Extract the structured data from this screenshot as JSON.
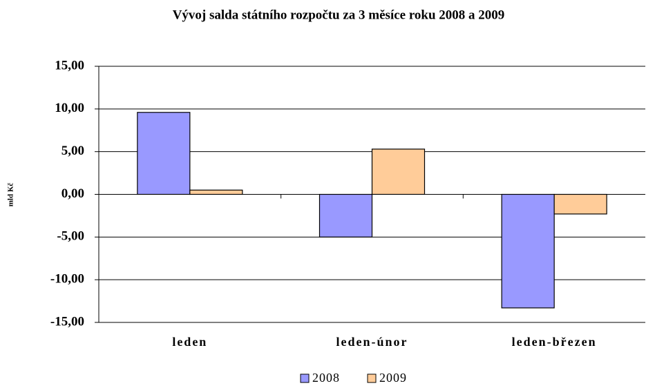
{
  "chart_data": {
    "type": "bar",
    "title": "Vývoj salda státního rozpočtu za 3 měsíce roku 2008 a 2009",
    "y_label": "mld Kč",
    "categories": [
      "leden",
      "leden-únor",
      "leden-březen"
    ],
    "series": [
      {
        "name": "2008",
        "color": "#9999ff",
        "values": [
          9.6,
          -5.0,
          -13.3
        ]
      },
      {
        "name": "2009",
        "color": "#ffcc99",
        "values": [
          0.5,
          5.3,
          -2.3
        ]
      }
    ],
    "ylim": [
      -15,
      15
    ],
    "yticks": [
      {
        "value": -15,
        "label": "-15,00"
      },
      {
        "value": -10,
        "label": "-10,00"
      },
      {
        "value": -5,
        "label": "-5,00"
      },
      {
        "value": 0,
        "label": "0,00"
      },
      {
        "value": 5,
        "label": "5,00"
      },
      {
        "value": 10,
        "label": "10,00"
      },
      {
        "value": 15,
        "label": "15,00"
      }
    ],
    "grid": true
  }
}
